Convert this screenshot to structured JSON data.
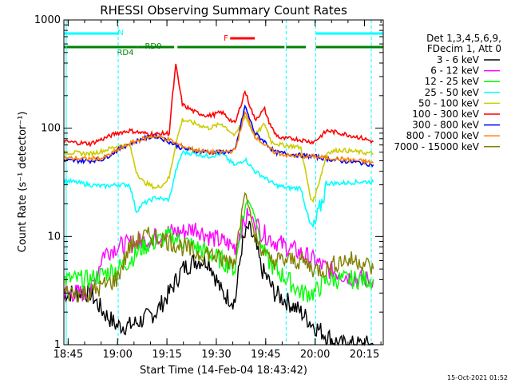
{
  "chart_data": {
    "type": "line",
    "title": "RHESSI Observing Summary Count Rates",
    "xlabel": "Start Time (14-Feb-04 18:43:42)",
    "ylabel": "Count Rate (s⁻¹ detector⁻¹)",
    "y_scale": "log",
    "ylim": [
      1,
      1000
    ],
    "xlim_minutes": [
      0,
      97
    ],
    "x_ticks": [
      {
        "label": "18:45",
        "min": 1.3
      },
      {
        "label": "19:00",
        "min": 16.3
      },
      {
        "label": "19:15",
        "min": 31.3
      },
      {
        "label": "19:30",
        "min": 46.3
      },
      {
        "label": "19:45",
        "min": 61.3
      },
      {
        "label": "20:00",
        "min": 76.3
      },
      {
        "label": "20:15",
        "min": 91.3
      }
    ],
    "y_ticks": [
      "1",
      "10",
      "100",
      "1000"
    ],
    "legend_header": [
      "Det 1,3,4,5,6,9,",
      "FDecim 1, Att 0"
    ],
    "legend_position": "right",
    "series": [
      {
        "name": "3 - 6 keV",
        "color": "#000000",
        "x": [
          0,
          8,
          12,
          16,
          20,
          24,
          28,
          32,
          36,
          40,
          44,
          48,
          52,
          54,
          56,
          58,
          60,
          62,
          64,
          68,
          72,
          76,
          80,
          84,
          90,
          94
        ],
        "y": [
          3,
          3,
          2,
          1.5,
          1.5,
          1.7,
          2,
          3,
          5,
          6,
          6,
          3,
          2.5,
          8,
          12,
          9,
          5,
          4,
          3,
          2.5,
          2,
          1.5,
          1.2,
          1,
          1,
          1
        ]
      },
      {
        "name": "6 - 12 keV",
        "color": "#ff00ff",
        "x": [
          0,
          8,
          12,
          16,
          20,
          24,
          28,
          32,
          36,
          40,
          44,
          48,
          52,
          54,
          56,
          58,
          60,
          62,
          64,
          68,
          72,
          76,
          80,
          84,
          90,
          94
        ],
        "y": [
          3,
          3,
          7,
          8,
          8.5,
          9,
          10,
          11,
          11,
          12,
          10,
          9,
          8,
          12,
          16,
          14,
          11,
          10,
          9,
          8,
          7,
          6,
          5,
          4.5,
          4,
          4
        ]
      },
      {
        "name": "12 - 25 keV",
        "color": "#00ff00",
        "x": [
          0,
          8,
          12,
          16,
          20,
          24,
          28,
          32,
          36,
          40,
          44,
          48,
          52,
          54,
          56,
          58,
          60,
          62,
          64,
          68,
          72,
          76,
          80,
          84,
          90,
          94
        ],
        "y": [
          4,
          4,
          4.5,
          5,
          6,
          8,
          9,
          10,
          9,
          8,
          7,
          6,
          5,
          14,
          22,
          16,
          8,
          6,
          5,
          4,
          3,
          3,
          4,
          4,
          4,
          4
        ]
      },
      {
        "name": "25 - 50 keV",
        "color": "#00ffff",
        "x": [
          0,
          8,
          12,
          16,
          20,
          22,
          24,
          28,
          30,
          32,
          34,
          36,
          40,
          44,
          48,
          52,
          55,
          58,
          61,
          64,
          68,
          72,
          75,
          76,
          80,
          84,
          90,
          94
        ],
        "y": [
          33,
          30,
          29,
          30,
          30,
          17,
          20,
          23,
          22,
          22,
          40,
          60,
          58,
          55,
          58,
          45,
          52,
          40,
          35,
          30,
          28,
          28,
          12,
          12,
          31,
          31,
          32,
          32
        ]
      },
      {
        "name": "50 - 100 keV",
        "color": "#cccc00",
        "x": [
          0,
          8,
          12,
          16,
          20,
          22,
          24,
          28,
          30,
          32,
          34,
          36,
          40,
          44,
          48,
          52,
          55,
          58,
          61,
          63,
          66,
          70,
          72,
          75,
          76,
          80,
          84,
          90,
          94
        ],
        "y": [
          60,
          58,
          62,
          68,
          70,
          40,
          32,
          28,
          30,
          35,
          72,
          120,
          110,
          100,
          110,
          85,
          130,
          85,
          110,
          75,
          70,
          68,
          66,
          22,
          22,
          60,
          63,
          60,
          58
        ]
      },
      {
        "name": "100 - 300 keV",
        "color": "#ff0000",
        "x": [
          0,
          8,
          12,
          16,
          20,
          24,
          28,
          32,
          33,
          34,
          36,
          40,
          44,
          48,
          52,
          55,
          58,
          61,
          62,
          64,
          66,
          70,
          72,
          75,
          76,
          80,
          84,
          90,
          94
        ],
        "y": [
          75,
          72,
          80,
          90,
          95,
          90,
          88,
          90,
          200,
          380,
          165,
          140,
          130,
          140,
          110,
          220,
          120,
          150,
          120,
          90,
          80,
          80,
          78,
          75,
          75,
          95,
          90,
          82,
          75
        ]
      },
      {
        "name": "300 - 800 keV",
        "color": "#0000ff",
        "x": [
          0,
          8,
          12,
          16,
          20,
          24,
          28,
          32,
          36,
          40,
          44,
          48,
          52,
          55,
          58,
          61,
          64,
          68,
          72,
          76,
          80,
          84,
          90,
          94
        ],
        "y": [
          50,
          50,
          52,
          62,
          72,
          80,
          85,
          75,
          65,
          62,
          60,
          60,
          62,
          160,
          90,
          75,
          60,
          58,
          56,
          55,
          52,
          50,
          48,
          46
        ]
      },
      {
        "name": "800 - 7000 keV",
        "color": "#ff8000",
        "x": [
          0,
          8,
          12,
          16,
          20,
          24,
          28,
          32,
          36,
          40,
          44,
          48,
          52,
          55,
          58,
          61,
          64,
          68,
          72,
          76,
          80,
          84,
          90,
          94
        ],
        "y": [
          53,
          52,
          53,
          62,
          72,
          80,
          85,
          78,
          68,
          63,
          60,
          60,
          62,
          140,
          85,
          70,
          60,
          56,
          55,
          55,
          53,
          52,
          50,
          48
        ]
      },
      {
        "name": "7000 - 15000 keV",
        "color": "#808000",
        "x": [
          0,
          8,
          12,
          16,
          20,
          24,
          28,
          32,
          36,
          40,
          44,
          48,
          52,
          54,
          55,
          56,
          58,
          60,
          62,
          64,
          68,
          72,
          76,
          80,
          84,
          90,
          94
        ],
        "y": [
          3,
          3,
          3.5,
          4,
          8,
          10,
          10,
          9,
          8,
          7,
          7,
          6,
          6,
          18,
          26,
          20,
          10,
          8,
          6,
          6,
          6,
          6,
          5,
          5,
          6,
          6,
          5
        ]
      }
    ],
    "annotations": {
      "flags": [
        {
          "label": "N",
          "color": "#00ffff",
          "segments": [
            [
              0,
              16.5
            ],
            [
              76.5,
              97
            ]
          ]
        },
        {
          "label": "F",
          "color": "#ff0000",
          "segments": [
            [
              50.5,
              58
            ]
          ]
        },
        {
          "label": "RD0",
          "color": "#008000",
          "segments": [
            [
              22.5,
              33.5
            ],
            [
              34.5,
              67
            ]
          ]
        },
        {
          "label": "RD4",
          "color": "#008000",
          "segments": [
            [
              0,
              22.5
            ],
            [
              67.5,
              73.5
            ],
            [
              76.5,
              97
            ]
          ]
        }
      ],
      "vertical_lines_minutes": [
        16.5,
        67.5,
        76.5
      ]
    }
  },
  "timestamp": "15-Oct-2021 01:52"
}
